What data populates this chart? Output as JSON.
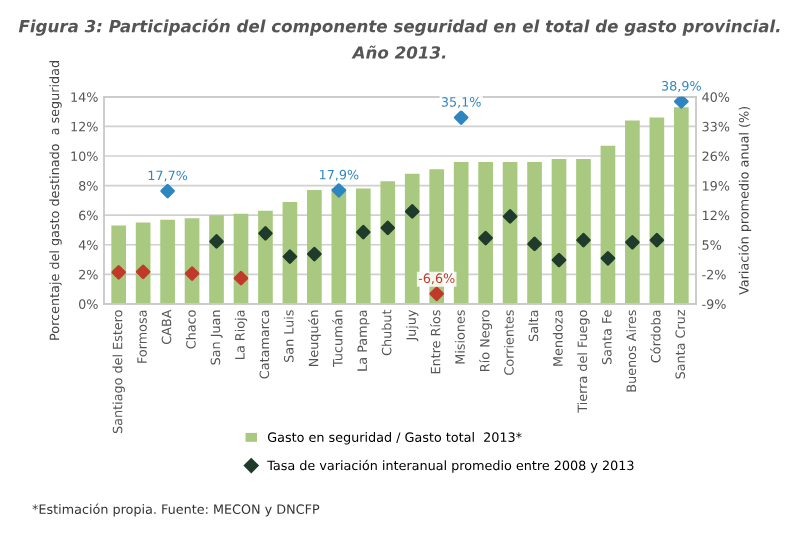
{
  "chart_data": {
    "type": "bar",
    "title": "Figura 3: Participación del componente seguridad en el total de gasto provincial.\nAño 2013.",
    "categories": [
      "Santiago del Estero",
      "Formosa",
      "CABA",
      "Chaco",
      "San Juan",
      "La Rioja",
      "Catamarca",
      "San Luis",
      "Neuquén",
      "Tucumán",
      "La Pampa",
      "Chubut",
      "Jujuy",
      "Entre Ríos",
      "Misiones",
      "Río Negro",
      "Corrientes",
      "Salta",
      "Mendoza",
      "Tierra del Fuego",
      "Santa Fe",
      "Buenos Aires",
      "Córdoba",
      "Santa Cruz"
    ],
    "series": [
      {
        "name": "Gasto en seguridad / Gasto total  2013*",
        "color": "#a8c97f",
        "values": [
          5.3,
          5.5,
          5.7,
          5.8,
          6.0,
          6.1,
          6.3,
          6.9,
          7.7,
          7.8,
          7.8,
          8.3,
          8.8,
          9.1,
          9.6,
          9.6,
          9.6,
          9.6,
          9.8,
          9.8,
          10.7,
          12.4,
          12.6,
          13.3
        ]
      },
      {
        "name": "Tasa de variación interanual promedio entre 2008 y 2013",
        "type": "scatter",
        "axis": "y2",
        "marker": "diamond",
        "color": "#1f3b2b",
        "colors": [
          "#c0392b",
          "#c0392b",
          "#2e86c1",
          "#c0392b",
          "#1f3b2b",
          "#c0392b",
          "#1f3b2b",
          "#1f3b2b",
          "#1f3b2b",
          "#2e86c1",
          "#1f3b2b",
          "#1f3b2b",
          "#1f3b2b",
          "#c0392b",
          "#2e86c1",
          "#1f3b2b",
          "#1f3b2b",
          "#1f3b2b",
          "#1f3b2b",
          "#1f3b2b",
          "#1f3b2b",
          "#1f3b2b",
          "#1f3b2b",
          "#2e86c1"
        ],
        "values": [
          -1.5,
          -1.4,
          17.7,
          -1.8,
          5.8,
          -2.9,
          7.7,
          2.2,
          2.8,
          17.9,
          8.0,
          9.0,
          12.9,
          -6.6,
          35.1,
          6.6,
          11.7,
          5.2,
          1.4,
          6.1,
          1.8,
          5.6,
          6.1,
          38.9
        ],
        "value_labels": [
          null,
          null,
          "17,7%",
          null,
          null,
          null,
          null,
          null,
          null,
          "17,9%",
          null,
          null,
          null,
          "-6,6%",
          "35,1%",
          null,
          null,
          null,
          null,
          null,
          null,
          null,
          null,
          "38,9%"
        ]
      }
    ],
    "ylabel": "Porcentaje del gasto destinado  a seguridad",
    "y2label": "Variación promedio anual (%)",
    "ylim": [
      0,
      14
    ],
    "yticks": [
      {
        "value": 0,
        "label": "0%"
      },
      {
        "value": 2,
        "label": "2%"
      },
      {
        "value": 4,
        "label": "4%"
      },
      {
        "value": 6,
        "label": "6%"
      },
      {
        "value": 8,
        "label": "8%"
      },
      {
        "value": 10,
        "label": "10%"
      },
      {
        "value": 12,
        "label": "12%"
      },
      {
        "value": 14,
        "label": "14%"
      }
    ],
    "y2lim": [
      -9,
      40
    ],
    "y2ticks": [
      {
        "value": -9,
        "label": "-9%"
      },
      {
        "value": -2,
        "label": "-2%"
      },
      {
        "value": 5,
        "label": "5%"
      },
      {
        "value": 12,
        "label": "12%"
      },
      {
        "value": 19,
        "label": "19%"
      },
      {
        "value": 26,
        "label": "26%"
      },
      {
        "value": 33,
        "label": "33%"
      },
      {
        "value": 40,
        "label": "40%"
      }
    ],
    "grid": "y",
    "legend": "bottom",
    "annotations": [
      "*Estimación propia. Fuente: MECON y DNCFP"
    ]
  }
}
